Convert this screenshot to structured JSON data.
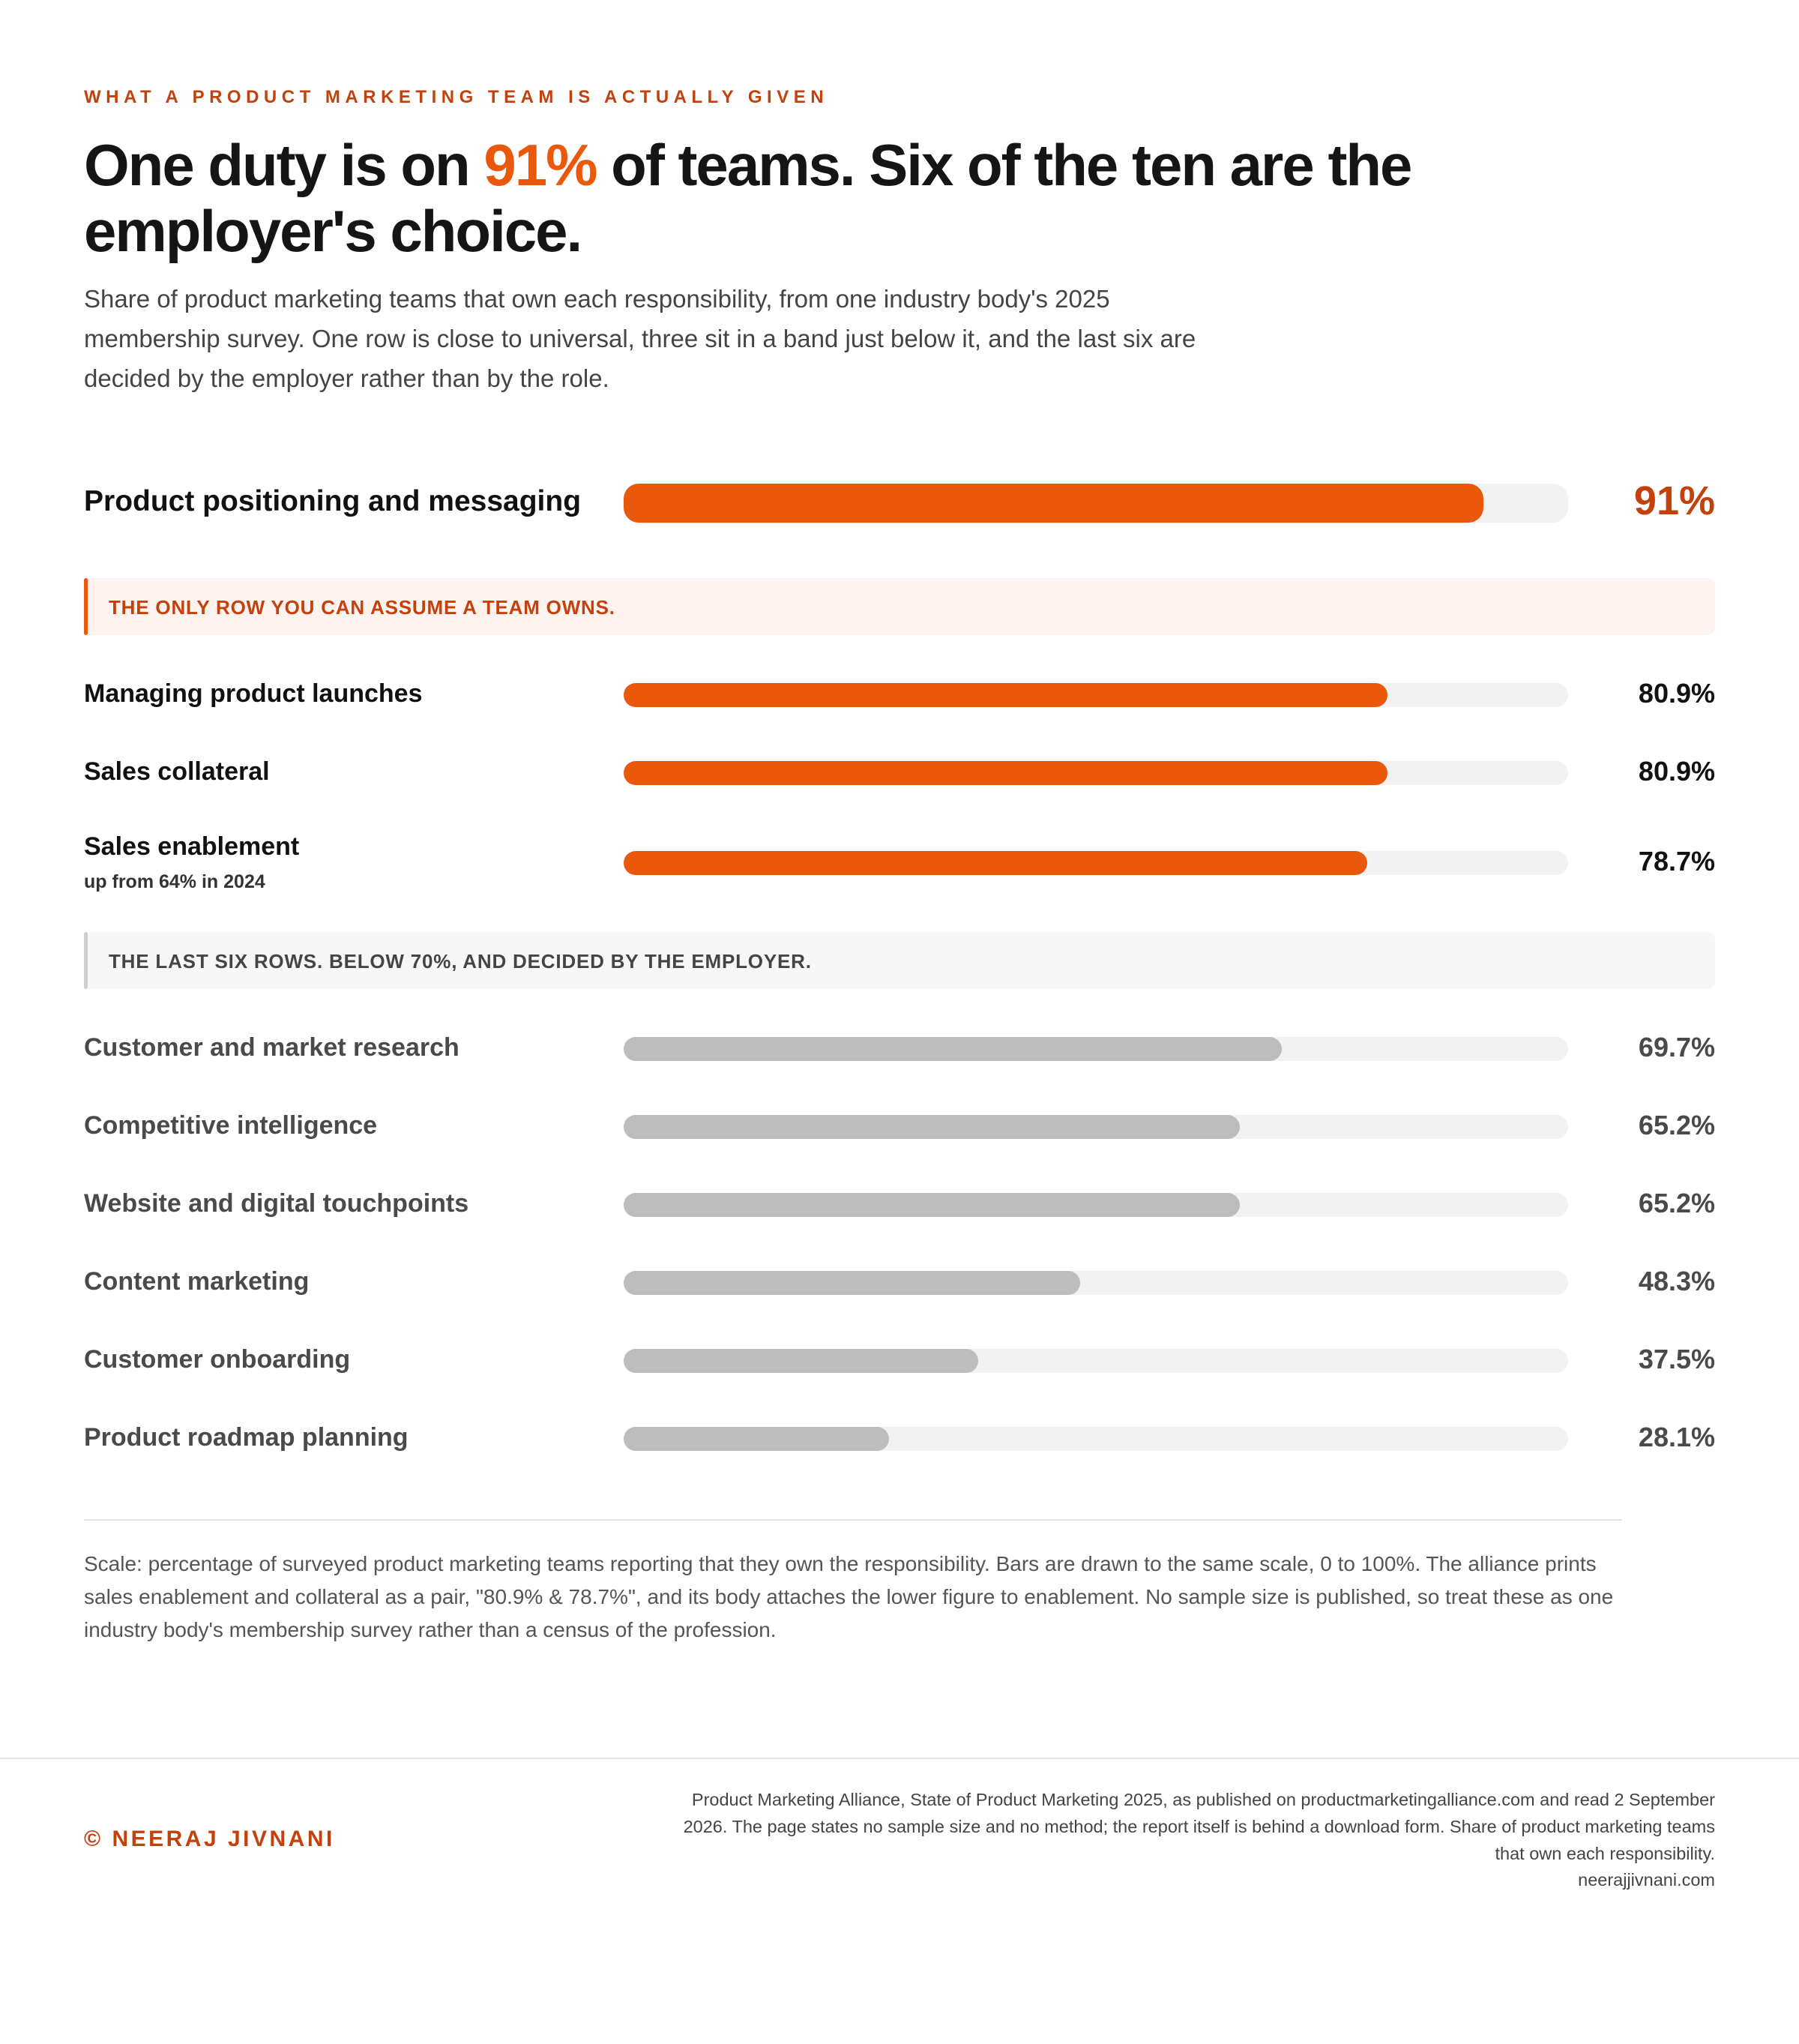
{
  "eyebrow": "WHAT A PRODUCT MARKETING TEAM IS ACTUALLY GIVEN",
  "headline": {
    "pre": "One duty is on ",
    "highlight": "91%",
    "post": " of teams. Six of the ten are the employer's choice."
  },
  "subtitle": "Share of product marketing teams that own each responsibility, from one industry body's 2025 membership survey. One row is close to universal, three sit in a band just below it, and the last six are decided by the employer rather than by the role.",
  "callouts": {
    "top": "THE ONLY ROW YOU CAN ASSUME A TEAM OWNS.",
    "bottom": "THE LAST SIX ROWS. BELOW 70%, AND DECIDED BY THE EMPLOYER."
  },
  "chart_data": {
    "type": "bar",
    "orientation": "horizontal",
    "xlim": [
      0,
      100
    ],
    "unit": "%",
    "categories": [
      "Product positioning and messaging",
      "Managing product launches",
      "Sales collateral",
      "Sales enablement",
      "Customer and market research",
      "Competitive intelligence",
      "Website and digital touchpoints",
      "Content marketing",
      "Customer onboarding",
      "Product roadmap planning"
    ],
    "values": [
      91,
      80.9,
      80.9,
      78.7,
      69.7,
      65.2,
      65.2,
      48.3,
      37.5,
      28.1
    ],
    "value_labels": [
      "91%",
      "80.9%",
      "80.9%",
      "78.7%",
      "69.7%",
      "65.2%",
      "65.2%",
      "48.3%",
      "37.5%",
      "28.1%"
    ],
    "notes": [
      "",
      "",
      "",
      "up from 64% in 2024",
      "",
      "",
      "",
      "",
      "",
      ""
    ],
    "colors": {
      "highlight": "#ea580c",
      "muted": "#bdbdbd",
      "track": "#f2f2f2",
      "accent_text": "#c2410c"
    }
  },
  "scale_note": "Scale: percentage of surveyed product marketing teams reporting that they own the responsibility. Bars are drawn to the same scale, 0 to 100%. The alliance prints sales enablement and collateral as a pair, \"80.9% & 78.7%\", and its body attaches the lower figure to enablement. No sample size is published, so treat these as one industry body's membership survey rather than a census of the profession.",
  "footer": {
    "copyright": "© NEERAJ JIVNANI",
    "source": "Product Marketing Alliance, State of Product Marketing 2025, as published on productmarketingalliance.com and read 2 September 2026. The page states no sample size and no method; the report itself is behind a download form. Share of product marketing teams that own each responsibility.",
    "site": "neerajjivnani.com"
  }
}
